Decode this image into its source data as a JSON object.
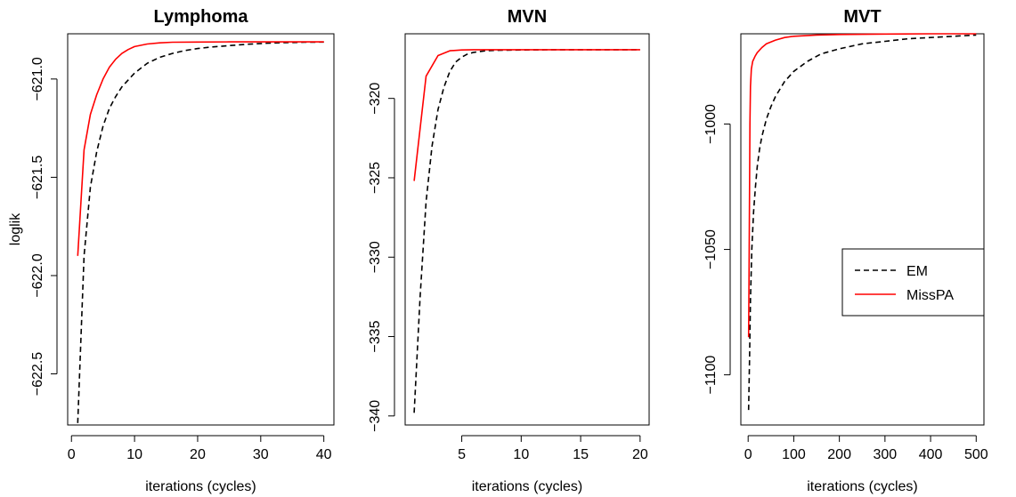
{
  "chart_data": [
    {
      "type": "line",
      "title": "Lymphoma",
      "xlabel": "iterations (cycles)",
      "ylabel": "loglik",
      "xlim": [
        -0.6,
        41.6
      ],
      "ylim": [
        -622.76,
        -620.77
      ],
      "xticks": [
        0,
        10,
        20,
        30,
        40
      ],
      "xtick_labels": [
        "0",
        "10",
        "20",
        "30",
        "40"
      ],
      "yticks": [
        -622.5,
        -622.0,
        -621.5,
        -621.0
      ],
      "ytick_labels": [
        "−622.5",
        "−622.0",
        "−621.5",
        "−621.0"
      ],
      "series": [
        {
          "name": "EM",
          "color": "#000000",
          "dash": "dashed",
          "x": [
            1,
            2,
            3,
            4,
            5,
            6,
            7,
            8,
            10,
            12,
            14,
            16,
            18,
            20,
            22,
            25,
            28,
            31,
            34,
            37,
            40
          ],
          "y": [
            -622.75,
            -621.9,
            -621.55,
            -621.37,
            -621.24,
            -621.15,
            -621.09,
            -621.04,
            -620.97,
            -620.92,
            -620.89,
            -620.87,
            -620.855,
            -620.845,
            -620.838,
            -620.83,
            -620.823,
            -620.818,
            -620.815,
            -620.813,
            -620.812
          ]
        },
        {
          "name": "MissPA",
          "color": "#ff0000",
          "dash": "solid",
          "x": [
            1,
            2,
            3,
            4,
            5,
            6,
            7,
            8,
            9,
            10,
            12,
            14,
            16,
            20,
            25,
            30,
            40
          ],
          "y": [
            -621.9,
            -621.36,
            -621.18,
            -621.08,
            -621.0,
            -620.94,
            -620.9,
            -620.87,
            -620.85,
            -620.835,
            -620.822,
            -620.816,
            -620.813,
            -620.812,
            -620.811,
            -620.811,
            -620.811
          ]
        }
      ]
    },
    {
      "type": "line",
      "title": "MVN",
      "xlabel": "iterations (cycles)",
      "ylabel": "",
      "xlim": [
        0.24,
        20.76
      ],
      "ylim": [
        -340.57,
        -315.93
      ],
      "xticks": [
        5,
        10,
        15,
        20
      ],
      "xtick_labels": [
        "5",
        "10",
        "15",
        "20"
      ],
      "yticks": [
        -340,
        -335,
        -330,
        -325,
        -320
      ],
      "ytick_labels": [
        "−340",
        "−335",
        "−330",
        "−325",
        "−320"
      ],
      "series": [
        {
          "name": "EM",
          "color": "#000000",
          "dash": "dashed",
          "x": [
            1,
            1.5,
            2,
            2.5,
            3,
            3.5,
            4,
            4.5,
            5,
            5.5,
            6,
            7,
            8,
            10,
            12,
            15,
            20
          ],
          "y": [
            -339.8,
            -332.5,
            -326.5,
            -323.0,
            -320.7,
            -319.3,
            -318.3,
            -317.7,
            -317.4,
            -317.2,
            -317.1,
            -317.0,
            -316.97,
            -316.95,
            -316.94,
            -316.93,
            -316.93
          ]
        },
        {
          "name": "MissPA",
          "color": "#ff0000",
          "dash": "solid",
          "x": [
            1,
            2,
            3,
            4,
            5,
            6,
            8,
            10,
            15,
            20
          ],
          "y": [
            -325.2,
            -318.6,
            -317.3,
            -317.0,
            -316.95,
            -316.93,
            -316.93,
            -316.93,
            -316.93,
            -316.93
          ]
        }
      ]
    },
    {
      "type": "line",
      "title": "MVT",
      "xlabel": "iterations (cycles)",
      "ylabel": "",
      "xlim": [
        -16.0,
        517.0
      ],
      "ylim": [
        -1120.0,
        -964.0
      ],
      "xticks": [
        0,
        100,
        200,
        300,
        400,
        500
      ],
      "xtick_labels": [
        "0",
        "100",
        "200",
        "300",
        "400",
        "500"
      ],
      "yticks": [
        -1100,
        -1050,
        -1000
      ],
      "ytick_labels": [
        "−1100",
        "−1050",
        "−1000"
      ],
      "legend": {
        "position": "right",
        "entries": [
          {
            "label": "EM",
            "color": "#000000",
            "dash": "dashed"
          },
          {
            "label": "MissPA",
            "color": "#ff0000",
            "dash": "solid"
          }
        ]
      },
      "series": [
        {
          "name": "EM",
          "color": "#000000",
          "dash": "dashed",
          "x": [
            1,
            3,
            5,
            8,
            12,
            16,
            20,
            25,
            30,
            40,
            50,
            60,
            80,
            100,
            130,
            160,
            200,
            250,
            300,
            350,
            400,
            450,
            500
          ],
          "y": [
            -1114,
            -1095,
            -1070,
            -1050,
            -1035,
            -1025,
            -1017,
            -1010,
            -1005,
            -998,
            -993,
            -989,
            -983,
            -979,
            -975,
            -972,
            -970,
            -968,
            -967,
            -966,
            -965.5,
            -965,
            -964.5
          ]
        },
        {
          "name": "MissPA",
          "color": "#ff0000",
          "dash": "solid",
          "x": [
            1,
            2,
            3,
            4,
            5,
            7,
            10,
            15,
            20,
            30,
            40,
            60,
            80,
            100,
            150,
            200,
            300,
            400,
            500
          ],
          "y": [
            -1085,
            -1060,
            -1030,
            -1000,
            -985,
            -978,
            -975,
            -973,
            -971.5,
            -969.5,
            -968,
            -966.5,
            -965.5,
            -965,
            -964.5,
            -964.3,
            -964.1,
            -964.0,
            -964.0
          ]
        }
      ]
    }
  ]
}
